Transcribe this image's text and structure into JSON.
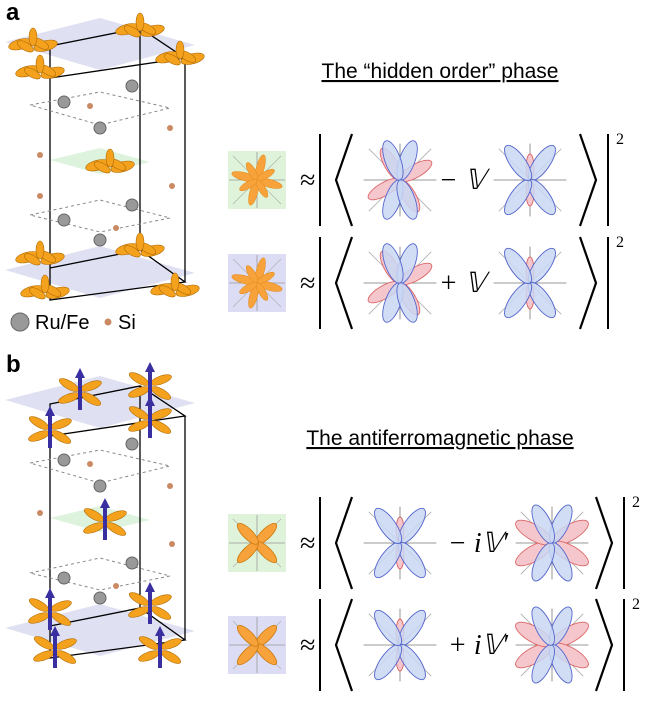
{
  "panels": [
    {
      "label": "a",
      "title": "The “hidden order” phase",
      "rows": [
        {
          "approx": "≈",
          "operator": "− 𝕍",
          "exponent": "2"
        },
        {
          "approx": "≈",
          "operator": "+ 𝕍",
          "exponent": "2"
        }
      ]
    },
    {
      "label": "b",
      "title": "The antiferromagnetic phase",
      "rows": [
        {
          "approx": "≈",
          "operator": "− i𝕍′",
          "exponent": "2"
        },
        {
          "approx": "≈",
          "operator": "+ i𝕍′",
          "exponent": "2"
        }
      ]
    }
  ],
  "legend": [
    {
      "label": "Ru/Fe"
    },
    {
      "label": "Si"
    }
  ]
}
